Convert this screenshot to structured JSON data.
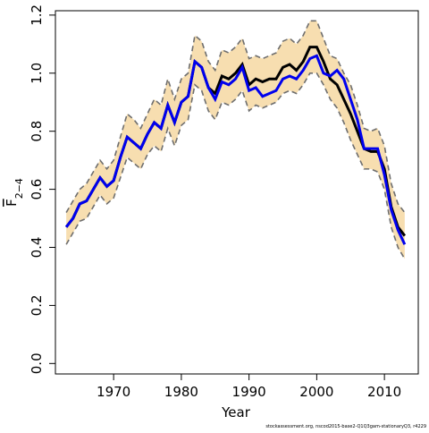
{
  "chart_data": {
    "type": "line",
    "xlabel": "Year",
    "ylabel": "F",
    "ylabel_sub": "2−4",
    "footer": "stockassessment.org, nscod2015-base2-Q1Q3gam-stationaryQ3, r4229",
    "x": [
      1963,
      1964,
      1965,
      1966,
      1967,
      1968,
      1969,
      1970,
      1971,
      1972,
      1973,
      1974,
      1975,
      1976,
      1977,
      1978,
      1979,
      1980,
      1981,
      1982,
      1983,
      1984,
      1985,
      1986,
      1987,
      1988,
      1989,
      1990,
      1991,
      1992,
      1993,
      1994,
      1995,
      1996,
      1997,
      1998,
      1999,
      2000,
      2001,
      2002,
      2003,
      2004,
      2005,
      2006,
      2007,
      2008,
      2009,
      2010,
      2011,
      2012,
      2013
    ],
    "band": {
      "color": "#f7deb0",
      "edge_color": "#6e6e6e",
      "upper": [
        0.52,
        0.56,
        0.6,
        0.62,
        0.66,
        0.7,
        0.67,
        0.7,
        0.78,
        0.86,
        0.84,
        0.81,
        0.86,
        0.91,
        0.89,
        0.98,
        0.91,
        0.98,
        1.0,
        1.13,
        1.11,
        1.04,
        1.01,
        1.08,
        1.07,
        1.09,
        1.12,
        1.05,
        1.06,
        1.05,
        1.06,
        1.07,
        1.11,
        1.12,
        1.1,
        1.13,
        1.18,
        1.18,
        1.12,
        1.06,
        1.05,
        1.0,
        0.96,
        0.89,
        0.81,
        0.8,
        0.81,
        0.75,
        0.62,
        0.55,
        0.52
      ],
      "lower": [
        0.41,
        0.45,
        0.49,
        0.5,
        0.54,
        0.58,
        0.55,
        0.57,
        0.64,
        0.71,
        0.69,
        0.67,
        0.72,
        0.75,
        0.73,
        0.81,
        0.75,
        0.82,
        0.84,
        0.96,
        0.94,
        0.87,
        0.84,
        0.9,
        0.89,
        0.91,
        0.94,
        0.87,
        0.89,
        0.88,
        0.89,
        0.9,
        0.93,
        0.94,
        0.93,
        0.96,
        1.0,
        1.0,
        0.96,
        0.91,
        0.88,
        0.83,
        0.77,
        0.72,
        0.67,
        0.67,
        0.66,
        0.6,
        0.47,
        0.4,
        0.36
      ]
    },
    "series": [
      {
        "color": "#000000",
        "values": [
          0.47,
          0.5,
          0.55,
          0.56,
          0.6,
          0.64,
          0.61,
          0.63,
          0.71,
          0.78,
          0.76,
          0.74,
          0.79,
          0.83,
          0.81,
          0.89,
          0.83,
          0.9,
          0.92,
          1.04,
          1.02,
          0.95,
          0.93,
          0.99,
          0.98,
          1.0,
          1.03,
          0.96,
          0.98,
          0.97,
          0.98,
          0.98,
          1.02,
          1.03,
          1.01,
          1.04,
          1.09,
          1.09,
          1.04,
          0.98,
          0.96,
          0.91,
          0.86,
          0.8,
          0.74,
          0.73,
          0.73,
          0.67,
          0.54,
          0.47,
          0.44
        ]
      },
      {
        "color": "#0000ee",
        "values": [
          0.47,
          0.5,
          0.55,
          0.56,
          0.6,
          0.64,
          0.61,
          0.63,
          0.71,
          0.78,
          0.76,
          0.74,
          0.79,
          0.83,
          0.81,
          0.89,
          0.83,
          0.9,
          0.92,
          1.04,
          1.02,
          0.95,
          0.91,
          0.97,
          0.96,
          0.98,
          1.02,
          0.94,
          0.95,
          0.92,
          0.93,
          0.94,
          0.98,
          0.99,
          0.98,
          1.01,
          1.05,
          1.06,
          1.0,
          0.99,
          1.01,
          0.98,
          0.91,
          0.84,
          0.74,
          0.74,
          0.74,
          0.65,
          0.53,
          0.46,
          0.41
        ]
      }
    ],
    "xlim": [
      1961.4,
      2015.0
    ],
    "ylim": [
      -0.036,
      1.215
    ],
    "xticks": [
      1970,
      1980,
      1990,
      2000,
      2010
    ],
    "yticks": [
      {
        "value": 0,
        "label": "0.0"
      },
      0.2,
      0.4,
      0.6,
      0.8,
      {
        "value": 1,
        "label": "1.0"
      },
      1.2
    ]
  }
}
